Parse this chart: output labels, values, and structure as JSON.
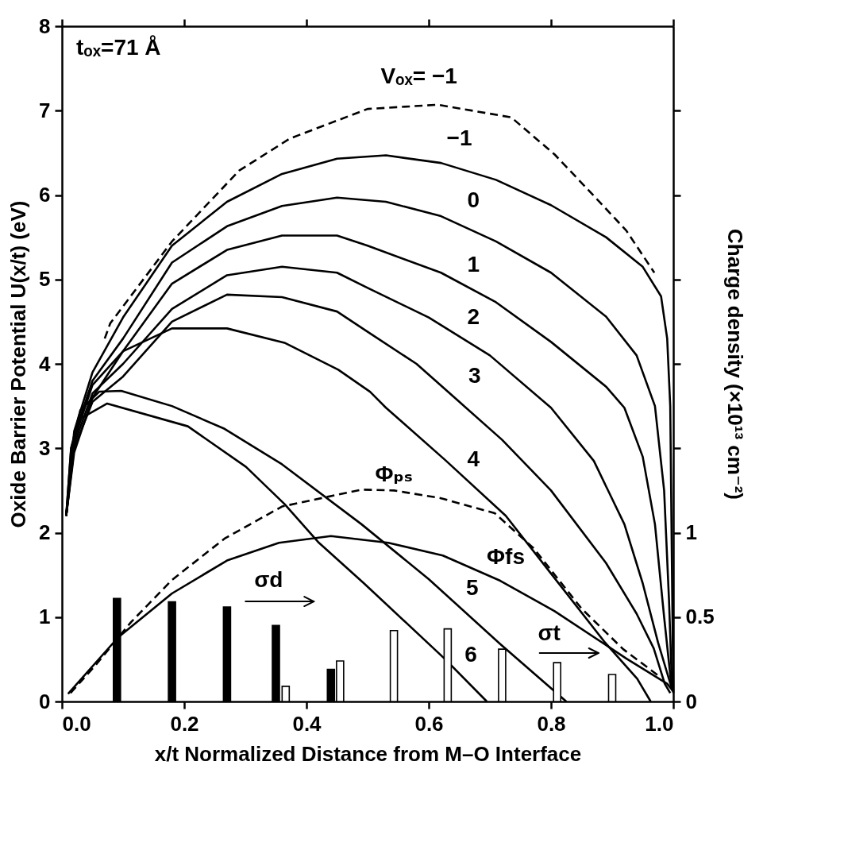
{
  "chart_data": {
    "type": "line",
    "xlabel": "x/t Normalized Distance from M–O Interface",
    "ylabel": "Oxide Barrier Potential U(x/t) (eV)",
    "y2label": "Charge density (×10¹³ cm⁻²)",
    "xlim": [
      0,
      1
    ],
    "xticks": [
      {
        "value": 0,
        "label": "0.0"
      },
      0.2,
      0.4,
      0.6,
      0.8,
      {
        "value": 1,
        "label": "1.0"
      }
    ],
    "ylim": [
      0,
      8
    ],
    "yticks": [
      0,
      1,
      2,
      3,
      4,
      5,
      6,
      7,
      8
    ],
    "y2lim": [
      0,
      4
    ],
    "y2ticks": [
      0,
      0.5,
      1,
      {
        "value": 1.5,
        "label": null
      },
      {
        "value": 2,
        "label": null
      },
      {
        "value": 2.5,
        "label": null
      },
      {
        "value": 3,
        "label": null
      },
      {
        "value": 3.5,
        "label": null
      }
    ],
    "grid": false,
    "legend": false,
    "marker": "none",
    "series": [
      {
        "type": "bar",
        "axis": "y2",
        "color": "#000000",
        "x": [
          0.09,
          0.18,
          0.27,
          0.35,
          0.44
        ],
        "values": [
          0.61,
          0.59,
          0.56,
          0.45,
          0.19
        ]
      },
      {
        "type": "bar",
        "axis": "y2",
        "color": "#ffffff",
        "x": [
          0.366,
          0.455,
          0.543,
          0.631,
          0.72,
          0.81,
          0.9
        ],
        "values": [
          0.09,
          0.24,
          0.42,
          0.43,
          0.31,
          0.23,
          0.16
        ]
      },
      {
        "name": "Vₒₓ= −1",
        "color": "#000000",
        "line_style": "dashed",
        "x": [
          0.07,
          0.079,
          0.18,
          0.29,
          0.373,
          0.5,
          0.615,
          0.735,
          0.806,
          0.874,
          0.923,
          0.969
        ],
        "values": [
          4.3,
          4.48,
          5.45,
          6.29,
          6.67,
          7.02,
          7.07,
          6.92,
          6.48,
          5.96,
          5.58,
          5.08
        ]
      },
      {
        "name": "−1",
        "color": "#000000",
        "line_style": "solid",
        "x": [
          0.007,
          0.02,
          0.05,
          0.1,
          0.18,
          0.27,
          0.36,
          0.45,
          0.53,
          0.62,
          0.71,
          0.8,
          0.89,
          0.95,
          0.98,
          0.99,
          0.995,
          1.0
        ],
        "values": [
          2.2,
          3.2,
          3.9,
          4.55,
          5.4,
          5.92,
          6.25,
          6.43,
          6.47,
          6.38,
          6.18,
          5.88,
          5.5,
          5.15,
          4.8,
          4.3,
          3.5,
          0.1
        ]
      },
      {
        "name": "0",
        "color": "#000000",
        "line_style": "solid",
        "x": [
          0.007,
          0.02,
          0.05,
          0.1,
          0.18,
          0.27,
          0.36,
          0.45,
          0.53,
          0.62,
          0.71,
          0.8,
          0.89,
          0.94,
          0.97,
          0.985,
          0.993,
          0.998
        ],
        "values": [
          2.2,
          3.15,
          3.8,
          4.3,
          5.2,
          5.63,
          5.87,
          5.97,
          5.92,
          5.75,
          5.45,
          5.08,
          4.56,
          4.1,
          3.5,
          2.5,
          1.2,
          0.14
        ]
      },
      {
        "name": "1",
        "color": "#000000",
        "line_style": "solid",
        "x": [
          0.007,
          0.02,
          0.05,
          0.1,
          0.18,
          0.27,
          0.36,
          0.45,
          0.5,
          0.62,
          0.71,
          0.8,
          0.89,
          0.92,
          0.95,
          0.97,
          0.985,
          0.997
        ],
        "values": [
          2.2,
          3.1,
          3.75,
          4.15,
          4.95,
          5.35,
          5.52,
          5.52,
          5.4,
          5.08,
          4.73,
          4.26,
          3.73,
          3.48,
          2.9,
          2.1,
          1.0,
          0.18
        ]
      },
      {
        "name": "2",
        "color": "#000000",
        "line_style": "solid",
        "x": [
          0.007,
          0.02,
          0.05,
          0.1,
          0.18,
          0.27,
          0.36,
          0.45,
          0.5,
          0.6,
          0.7,
          0.8,
          0.87,
          0.92,
          0.95,
          0.975,
          0.999
        ],
        "values": [
          2.2,
          3.05,
          3.65,
          4.0,
          4.65,
          5.05,
          5.15,
          5.08,
          4.9,
          4.55,
          4.1,
          3.48,
          2.85,
          2.1,
          1.4,
          0.7,
          0.12
        ]
      },
      {
        "name": "3",
        "color": "#000000",
        "line_style": "solid",
        "x": [
          0.007,
          0.02,
          0.05,
          0.1,
          0.18,
          0.27,
          0.36,
          0.45,
          0.5,
          0.58,
          0.65,
          0.72,
          0.8,
          0.89,
          0.94,
          0.968,
          0.986,
          0.995
        ],
        "values": [
          2.2,
          3.0,
          3.55,
          3.85,
          4.5,
          4.82,
          4.79,
          4.62,
          4.38,
          4.0,
          3.55,
          3.1,
          2.5,
          1.64,
          1.04,
          0.63,
          0.21,
          0.1
        ]
      },
      {
        "name": "4",
        "color": "#000000",
        "line_style": "solid",
        "x": [
          0.007,
          0.02,
          0.05,
          0.1,
          0.18,
          0.27,
          0.364,
          0.452,
          0.504,
          0.53,
          0.627,
          0.726,
          0.806,
          0.887,
          0.941,
          0.963
        ],
        "values": [
          2.2,
          2.95,
          3.6,
          4.15,
          4.42,
          4.42,
          4.25,
          3.93,
          3.67,
          3.48,
          2.86,
          2.2,
          1.46,
          0.71,
          0.27,
          0
        ]
      },
      {
        "name": "5",
        "color": "#000000",
        "line_style": "solid",
        "x": [
          0.007,
          0.015,
          0.03,
          0.061,
          0.097,
          0.18,
          0.266,
          0.36,
          0.49,
          0.6,
          0.717,
          0.825
        ],
        "values": [
          2.2,
          3.0,
          3.45,
          3.67,
          3.68,
          3.5,
          3.23,
          2.81,
          2.1,
          1.45,
          0.68,
          0
        ]
      },
      {
        "name": "6",
        "color": "#000000",
        "line_style": "solid",
        "x": [
          0.007,
          0.015,
          0.03,
          0.074,
          0.206,
          0.301,
          0.364,
          0.419,
          0.494,
          0.627,
          0.695
        ],
        "values": [
          2.2,
          3.0,
          3.35,
          3.53,
          3.26,
          2.78,
          2.34,
          1.89,
          1.4,
          0.5,
          0
        ]
      },
      {
        "name": "Φfs",
        "color": "#000000",
        "line_style": "solid",
        "x": [
          0.01,
          0.092,
          0.18,
          0.27,
          0.355,
          0.44,
          0.534,
          0.623,
          0.717,
          0.806,
          0.923,
          0.99,
          1.0
        ],
        "values": [
          0.09,
          0.76,
          1.28,
          1.67,
          1.88,
          1.96,
          1.88,
          1.73,
          1.43,
          1.07,
          0.51,
          0.21,
          0.12
        ]
      },
      {
        "name": "Φₚₛ",
        "color": "#000000",
        "line_style": "dashed",
        "x": [
          0.014,
          0.055,
          0.113,
          0.18,
          0.266,
          0.36,
          0.49,
          0.543,
          0.619,
          0.708,
          0.771,
          0.85,
          0.918,
          0.975
        ],
        "values": [
          0.1,
          0.43,
          0.94,
          1.44,
          1.93,
          2.31,
          2.51,
          2.5,
          2.41,
          2.23,
          1.82,
          1.1,
          0.62,
          0.31
        ]
      }
    ],
    "annotations": [
      "tₒₓ=71 Å",
      "σd",
      "σt"
    ]
  }
}
